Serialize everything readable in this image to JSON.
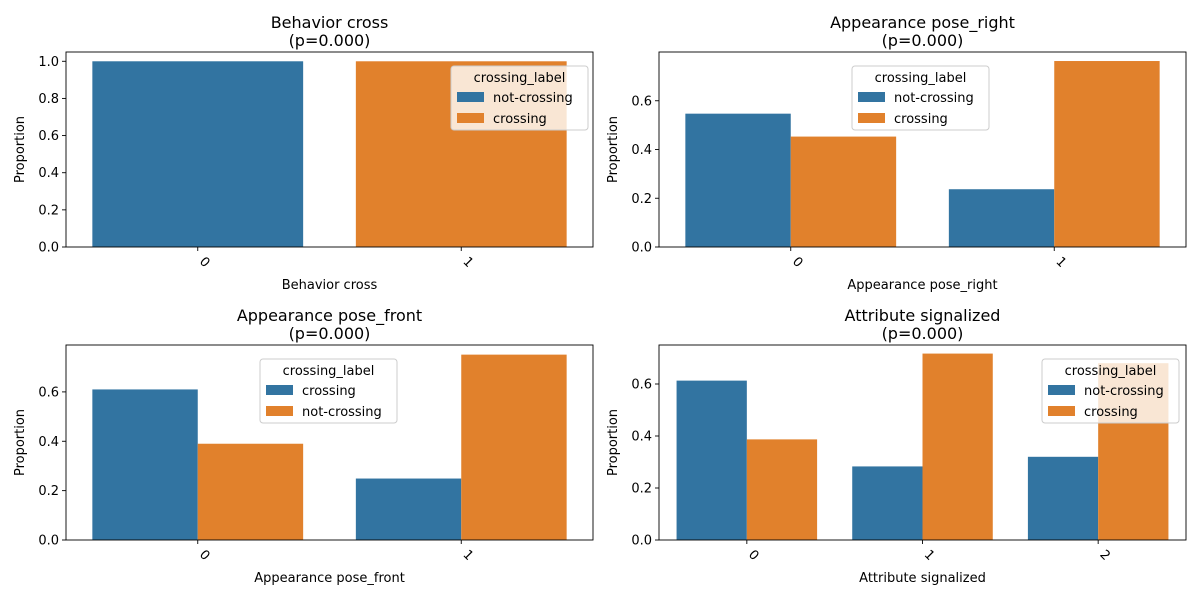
{
  "colors": {
    "blue": "#3274a1",
    "orange": "#e1812c"
  },
  "chart_data": [
    {
      "type": "bar",
      "title": "Behavior cross",
      "subtitle": "(p=0.000)",
      "xlabel": "Behavior cross",
      "ylabel": "Proportion",
      "categories": [
        "0",
        "1"
      ],
      "ylim": [
        0,
        1.05
      ],
      "yticks": [
        "0.0",
        "0.2",
        "0.4",
        "0.6",
        "0.8",
        "1.0"
      ],
      "legend": {
        "title": "crossing_label",
        "placement": "upper-right"
      },
      "series": [
        {
          "name": "not-crossing",
          "color": "#3274a1",
          "values": [
            1.0,
            0
          ]
        },
        {
          "name": "crossing",
          "color": "#e1812c",
          "values": [
            0,
            1.0
          ]
        }
      ],
      "layout_mode": "single"
    },
    {
      "type": "bar",
      "title": "Appearance pose_right",
      "subtitle": "(p=0.000)",
      "xlabel": "Appearance pose_right",
      "ylabel": "Proportion",
      "categories": [
        "0",
        "1"
      ],
      "ylim": [
        0,
        0.8
      ],
      "yticks": [
        "0.0",
        "0.2",
        "0.4",
        "0.6"
      ],
      "legend": {
        "title": "crossing_label",
        "placement": "upper-center"
      },
      "series": [
        {
          "name": "not-crossing",
          "color": "#3274a1",
          "values": [
            0.547,
            0.237
          ]
        },
        {
          "name": "crossing",
          "color": "#e1812c",
          "values": [
            0.453,
            0.763
          ]
        }
      ],
      "layout_mode": "dodge"
    },
    {
      "type": "bar",
      "title": "Appearance pose_front",
      "subtitle": "(p=0.000)",
      "xlabel": "Appearance pose_front",
      "ylabel": "Proportion",
      "categories": [
        "0",
        "1"
      ],
      "ylim": [
        0,
        0.79
      ],
      "yticks": [
        "0.0",
        "0.2",
        "0.4",
        "0.6"
      ],
      "legend": {
        "title": "crossing_label",
        "placement": "upper-center"
      },
      "series": [
        {
          "name": "crossing",
          "color": "#3274a1",
          "values": [
            0.61,
            0.249
          ]
        },
        {
          "name": "not-crossing",
          "color": "#e1812c",
          "values": [
            0.39,
            0.751
          ]
        }
      ],
      "layout_mode": "dodge"
    },
    {
      "type": "bar",
      "title": "Attribute signalized",
      "subtitle": "(p=0.000)",
      "xlabel": "Attribute signalized",
      "ylabel": "Proportion",
      "categories": [
        "0",
        "1",
        "2"
      ],
      "ylim": [
        0,
        0.75
      ],
      "yticks": [
        "0.0",
        "0.2",
        "0.4",
        "0.6"
      ],
      "legend": {
        "title": "crossing_label",
        "placement": "upper-right"
      },
      "series": [
        {
          "name": "not-crossing",
          "color": "#3274a1",
          "values": [
            0.613,
            0.283,
            0.32
          ]
        },
        {
          "name": "crossing",
          "color": "#e1812c",
          "values": [
            0.387,
            0.717,
            0.68
          ]
        }
      ],
      "layout_mode": "dodge"
    }
  ]
}
